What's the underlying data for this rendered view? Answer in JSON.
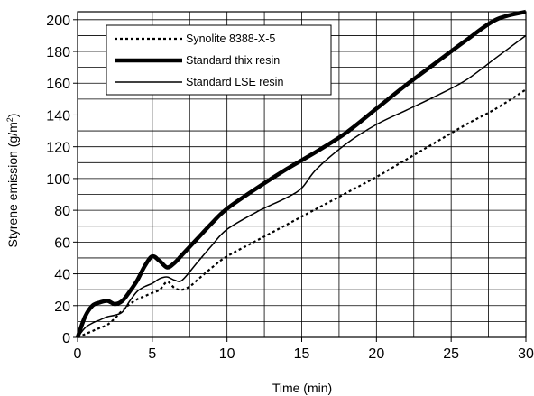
{
  "chart_data": {
    "type": "line",
    "xlabel": "Time (min)",
    "ylabel_main": "Styrene emission (g/m",
    "ylabel_sup": "2",
    "ylabel_close": ")",
    "xlim": [
      0,
      30
    ],
    "ylim": [
      0,
      205
    ],
    "x_ticks": [
      0,
      5,
      10,
      15,
      20,
      25,
      30
    ],
    "y_ticks": [
      0,
      20,
      40,
      60,
      80,
      100,
      120,
      140,
      160,
      180,
      200
    ],
    "x_grid_step": 2.5,
    "y_grid_step": 10,
    "grid": true,
    "legend_position": "top-left",
    "series": [
      {
        "name": "Synolite 8388-X-5",
        "style": "dotted",
        "x": [
          0,
          0.5,
          1,
          1.5,
          2,
          2.5,
          3,
          3.5,
          4,
          4.5,
          5,
          5.5,
          6,
          6.5,
          7,
          7.5,
          8,
          9,
          10,
          12,
          14,
          16,
          18,
          20,
          22,
          24,
          26,
          28,
          30
        ],
        "y": [
          0,
          2,
          4,
          6,
          8,
          12,
          17,
          21,
          24,
          26,
          28,
          30,
          35,
          31,
          30,
          32,
          36,
          44,
          51,
          61,
          71,
          81,
          91,
          101,
          112,
          123,
          134,
          144,
          156
        ]
      },
      {
        "name": "Standard thix resin",
        "style": "thick",
        "x": [
          0,
          0.5,
          1,
          1.5,
          2,
          2.5,
          3,
          3.5,
          4,
          4.5,
          5,
          5.5,
          6,
          6.5,
          7,
          8,
          9,
          10,
          12,
          14,
          16,
          18,
          20,
          22,
          24,
          26,
          28,
          30
        ],
        "y": [
          0,
          13,
          20,
          22,
          23,
          21,
          23,
          29,
          36,
          45,
          51,
          48,
          44,
          47,
          52,
          62,
          72,
          81,
          94,
          106,
          117,
          129,
          144,
          159,
          173,
          187,
          200,
          205
        ]
      },
      {
        "name": "Standard LSE resin",
        "style": "thin",
        "x": [
          0,
          0.5,
          1,
          1.5,
          2,
          2.5,
          3,
          3.5,
          4,
          4.5,
          5,
          5.5,
          6,
          6.5,
          7,
          8,
          9,
          10,
          12,
          14,
          15,
          16,
          18,
          20,
          22,
          24,
          26,
          28,
          30
        ],
        "y": [
          0,
          6,
          9,
          11,
          13,
          14,
          16,
          23,
          29,
          32,
          34,
          37,
          38,
          36,
          36,
          47,
          58,
          68,
          79,
          88,
          94,
          106,
          122,
          134,
          143,
          152,
          162,
          176,
          190
        ]
      }
    ]
  }
}
